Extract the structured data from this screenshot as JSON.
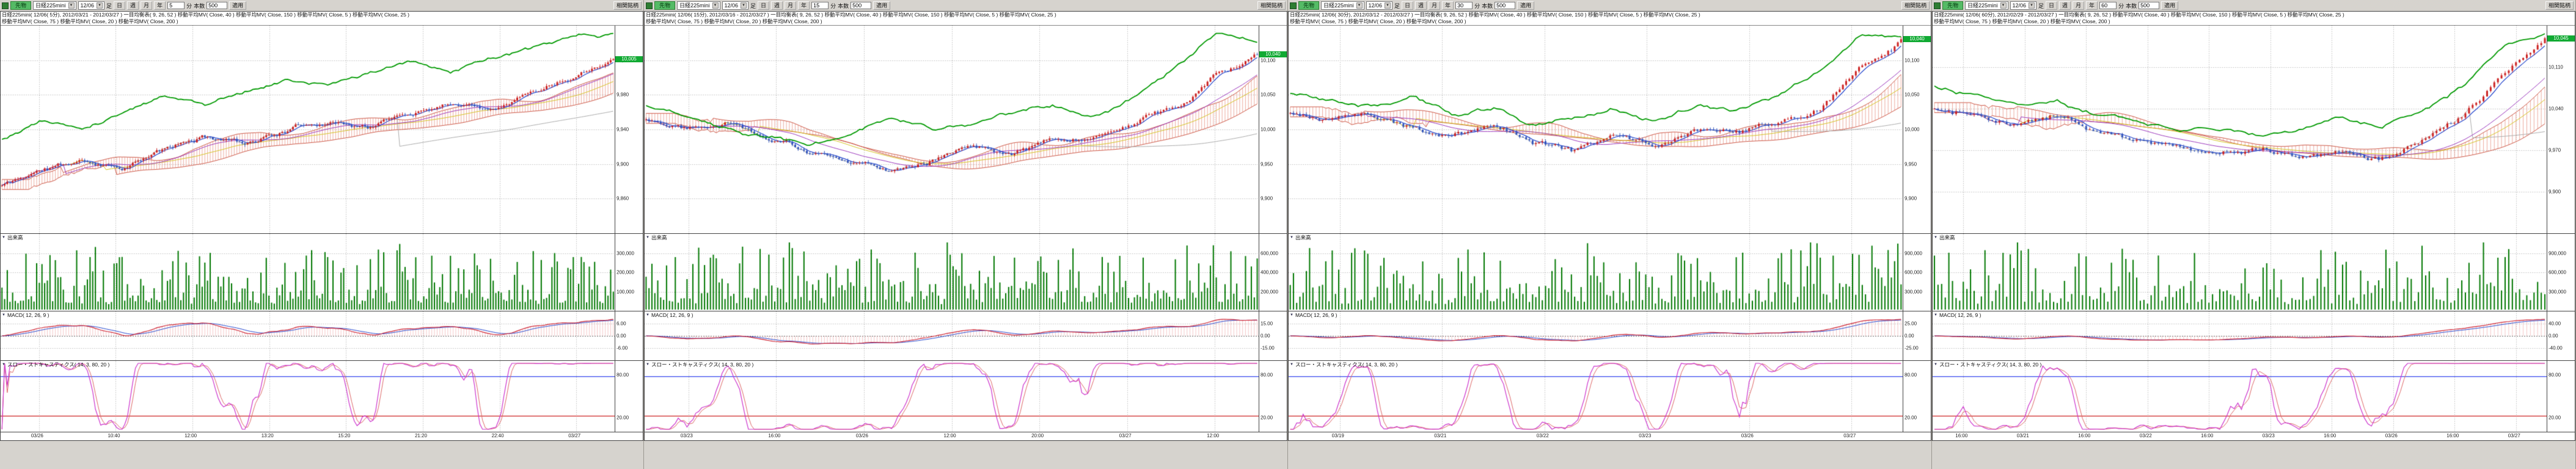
{
  "toolbar": {
    "futures_label": "先物",
    "symbol": "日経225mini",
    "contract": "12/06",
    "ashi_label": "足",
    "period_buttons": [
      "日",
      "週",
      "月",
      "年"
    ],
    "minute_label": "分",
    "bars_label": "本数",
    "bars_value": "500",
    "apply_label": "適用",
    "correlation_label": "相関銘柄"
  },
  "sections": {
    "volume_label": "出来高",
    "macd_label": "MACD( 12, 26, 9 )",
    "stoch_label": "スロー・ストキャスティクス( 14, 3, 80, 20 )"
  },
  "colors": {
    "panel_bg": "#d6d3ce",
    "chart_bg": "#ffffff",
    "border": "#555555",
    "grid": "#aaaaaa",
    "candle_up": "#cc2222",
    "candle_down": "#3355bb",
    "cloud": "rgba(221,102,80,0.55)",
    "cloud_edge": "#cc5544",
    "ma5": "#2244cc",
    "ma25": "#9933bb",
    "ma40": "#d4c31e",
    "ma150": "#aaaaaa",
    "overlay": "#009900",
    "volume": "#007700",
    "macd": "#cc2233",
    "signal": "#2244cc",
    "hist": "rgba(230,130,130,0.45)",
    "stoch_k": "#cc33cc",
    "stoch_d": "#dd6666",
    "band_high": "#3344ee",
    "band_low": "#cc2222",
    "tag_bg": "#11aa33",
    "tag_text": "#ffffff"
  },
  "panels": [
    {
      "minute_value": "5",
      "title_line1": "日経225mini( 12/06( 5分), 2012/03/21 - 2012/03/27 )  一目均衡表( 9, 26, 52 )  移動平均MV( Close, 40 )  移動平均MV( Close, 150 )  移動平均MV( Close, 5 )  移動平均MV( Close, 25 )",
      "title_line2": "移動平均MV( Close, 75 )  移動平均MV( Close, 20 )  移動平均MV( Close, 200 )",
      "price_axis": [
        "10,020",
        "9,980",
        "9,940",
        "9,900",
        "9,860"
      ],
      "volume_axis": [
        "300,000",
        "200,000",
        "100,000"
      ],
      "macd_axis": [
        "6.00",
        "0.00",
        "-6.00"
      ],
      "stoch_axis": [
        "80.00",
        "20.00"
      ],
      "x_labels": [
        "03/26",
        "10:40",
        "12:00",
        "13:20",
        "15:20",
        "21:20",
        "22:40",
        "03/27"
      ],
      "last_price": "10,005",
      "bars": 230,
      "seed": 11,
      "noise": 0.8,
      "close_anchors": [
        0.22,
        0.3,
        0.34,
        0.32,
        0.4,
        0.46,
        0.44,
        0.5,
        0.55,
        0.52,
        0.58,
        0.64,
        0.62,
        0.7,
        0.78,
        0.88
      ],
      "green_anchors": [
        0.45,
        0.55,
        0.5,
        0.6,
        0.68,
        0.63,
        0.7,
        0.75,
        0.72,
        0.78,
        0.83,
        0.79,
        0.86,
        0.9,
        0.95,
        0.97
      ]
    },
    {
      "minute_value": "15",
      "title_line1": "日経225mini( 12/06( 15分), 2012/03/16 - 2012/03/27 )  一目均衡表( 9, 26, 52 )  移動平均MV( Close, 40 )  移動平均MV( Close, 150 )  移動平均MV( Close, 5 )  移動平均MV( Close, 25 )",
      "title_line2": "移動平均MV( Close, 75 )  移動平均MV( Close, 20 )  移動平均MV( Close, 200 )",
      "price_axis": [
        "10,100",
        "10,050",
        "10,000",
        "9,950",
        "9,900"
      ],
      "volume_axis": [
        "600,000",
        "400,000",
        "200,000"
      ],
      "macd_axis": [
        "15.00",
        "0.00",
        "-15.00"
      ],
      "stoch_axis": [
        "80.00",
        "20.00"
      ],
      "x_labels": [
        "03/23",
        "16:00",
        "03/26",
        "12:00",
        "20:00",
        "03/27",
        "12:00"
      ],
      "last_price": "10,040",
      "bars": 210,
      "seed": 22,
      "noise": 0.9,
      "close_anchors": [
        0.55,
        0.52,
        0.56,
        0.48,
        0.4,
        0.32,
        0.3,
        0.36,
        0.42,
        0.4,
        0.46,
        0.44,
        0.52,
        0.62,
        0.78,
        0.88
      ],
      "green_anchors": [
        0.62,
        0.58,
        0.52,
        0.46,
        0.42,
        0.46,
        0.55,
        0.5,
        0.52,
        0.58,
        0.62,
        0.58,
        0.66,
        0.8,
        0.97,
        0.93
      ]
    },
    {
      "minute_value": "30",
      "title_line1": "日経225mini( 12/06( 30分), 2012/03/12 - 2012/03/27 )  一目均衡表( 9, 26, 52 )  移動平均MV( Close, 40 )  移動平均MV( Close, 150 )  移動平均MV( Close, 5 )  移動平均MV( Close, 25 )",
      "title_line2": "移動平均MV( Close, 75 )  移動平均MV( Close, 20 )  移動平均MV( Close, 200 )",
      "price_axis": [
        "10,100",
        "10,050",
        "10,000",
        "9,950",
        "9,900"
      ],
      "volume_axis": [
        "900,000",
        "600,000",
        "300,000"
      ],
      "macd_axis": [
        "25.00",
        "0.00",
        "-25.00"
      ],
      "stoch_axis": [
        "80.00",
        "20.00"
      ],
      "x_labels": [
        "03/19",
        "03/21",
        "03/22",
        "03/23",
        "03/26",
        "03/27"
      ],
      "last_price": "10,040",
      "bars": 190,
      "seed": 33,
      "noise": 1.0,
      "close_anchors": [
        0.58,
        0.54,
        0.57,
        0.5,
        0.46,
        0.52,
        0.44,
        0.4,
        0.47,
        0.42,
        0.5,
        0.46,
        0.52,
        0.6,
        0.82,
        0.93
      ],
      "green_anchors": [
        0.68,
        0.63,
        0.6,
        0.64,
        0.56,
        0.6,
        0.52,
        0.56,
        0.6,
        0.55,
        0.63,
        0.58,
        0.66,
        0.78,
        0.97,
        0.94
      ]
    },
    {
      "minute_value": "60",
      "title_line1": "日経225mini( 12/06( 60分), 2012/02/29 - 2012/03/27 )  一目均衡表( 9, 26, 52 )  移動平均MV( Close, 40 )  移動平均MV( Close, 150 )  移動平均MV( Close, 5 )  移動平均MV( Close, 25 )",
      "title_line2": "移動平均MV( Close, 75 )  移動平均MV( Close, 20 )  移動平均MV( Close, 200 )",
      "price_axis": [
        "10,110",
        "10,040",
        "9,970",
        "9,900"
      ],
      "volume_axis": [
        "900,000",
        "600,000",
        "300,000"
      ],
      "macd_axis": [
        "40.00",
        "0.00",
        "-40.00"
      ],
      "stoch_axis": [
        "80.00",
        "20.00"
      ],
      "x_labels": [
        "16:00",
        "03/21",
        "16:00",
        "03/22",
        "16:00",
        "03/23",
        "16:00",
        "03/26",
        "16:00",
        "03/27"
      ],
      "last_price": "10,045",
      "bars": 170,
      "seed": 44,
      "noise": 1.0,
      "close_anchors": [
        0.6,
        0.56,
        0.52,
        0.56,
        0.48,
        0.44,
        0.4,
        0.36,
        0.42,
        0.34,
        0.4,
        0.36,
        0.44,
        0.56,
        0.78,
        0.95
      ],
      "green_anchors": [
        0.72,
        0.68,
        0.62,
        0.66,
        0.58,
        0.54,
        0.5,
        0.52,
        0.47,
        0.5,
        0.56,
        0.52,
        0.62,
        0.72,
        0.92,
        0.97
      ]
    }
  ]
}
